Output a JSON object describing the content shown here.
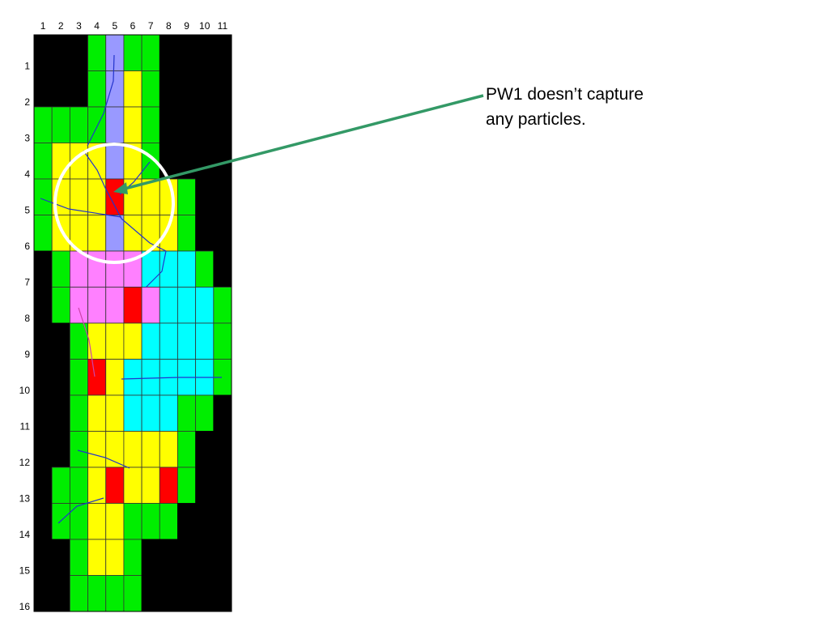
{
  "grid": {
    "column_labels": [
      "1",
      "2",
      "3",
      "4",
      "5",
      "6",
      "7",
      "8",
      "9",
      "10",
      "11"
    ],
    "row_labels": [
      "1",
      "2",
      "3",
      "4",
      "5",
      "6",
      "7",
      "8",
      "9",
      "10",
      "11",
      "12",
      "13",
      "14",
      "15",
      "16"
    ]
  },
  "annotation": {
    "lines": [
      "PW1 doesn’t capture",
      "any particles."
    ]
  }
}
